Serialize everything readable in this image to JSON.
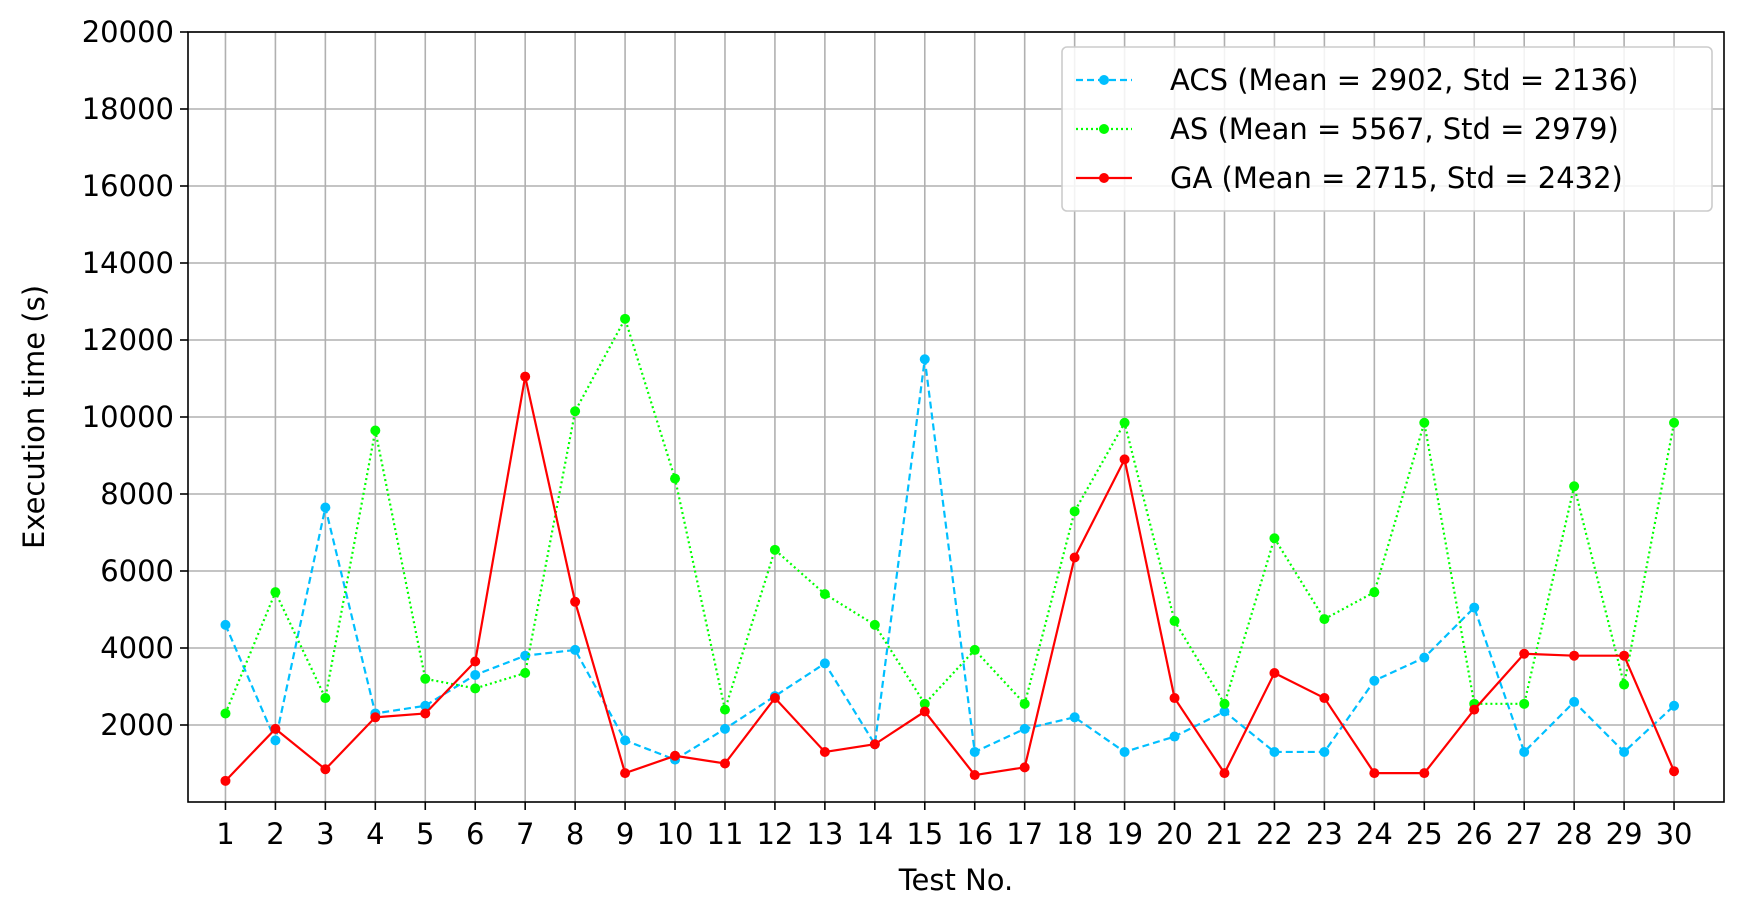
{
  "chart_data": {
    "type": "line",
    "xlabel": "Test No.",
    "ylabel": "Execution time (s)",
    "x": [
      1,
      2,
      3,
      4,
      5,
      6,
      7,
      8,
      9,
      10,
      11,
      12,
      13,
      14,
      15,
      16,
      17,
      18,
      19,
      20,
      21,
      22,
      23,
      24,
      25,
      26,
      27,
      28,
      29,
      30
    ],
    "yticks": [
      2000,
      4000,
      6000,
      8000,
      10000,
      12000,
      14000,
      16000,
      18000,
      20000
    ],
    "ylim": [
      0,
      20000
    ],
    "grid": true,
    "legend_position": "top-right",
    "series": [
      {
        "name": "ACS (Mean = 2902, Std = 2136)",
        "color": "#00bfff",
        "line_style": "dashed",
        "values": [
          4600,
          1600,
          7650,
          2300,
          2500,
          3300,
          3800,
          3950,
          1600,
          1100,
          1900,
          2750,
          3600,
          1500,
          11500,
          1300,
          1900,
          2200,
          1300,
          1700,
          2350,
          1300,
          1300,
          3150,
          3750,
          5050,
          1300,
          2600,
          1300,
          2500
        ]
      },
      {
        "name": "AS (Mean = 5567, Std = 2979)",
        "color": "#00ff00",
        "line_style": "dotted",
        "values": [
          2300,
          5450,
          2700,
          9650,
          3200,
          2950,
          3350,
          10150,
          12550,
          8400,
          2400,
          6550,
          5400,
          4600,
          2550,
          3950,
          2550,
          7550,
          9850,
          4700,
          2550,
          6850,
          4750,
          5450,
          9850,
          2550,
          2550,
          8200,
          3050,
          9850
        ]
      },
      {
        "name": "GA (Mean = 2715, Std = 2432)",
        "color": "#ff0000",
        "line_style": "solid",
        "values": [
          550,
          1900,
          850,
          2200,
          2300,
          3650,
          11050,
          5200,
          750,
          1200,
          1000,
          2700,
          1300,
          1500,
          2350,
          700,
          900,
          6350,
          8900,
          2700,
          750,
          3350,
          2700,
          750,
          750,
          2400,
          3850,
          3800,
          3800,
          800
        ]
      }
    ]
  }
}
